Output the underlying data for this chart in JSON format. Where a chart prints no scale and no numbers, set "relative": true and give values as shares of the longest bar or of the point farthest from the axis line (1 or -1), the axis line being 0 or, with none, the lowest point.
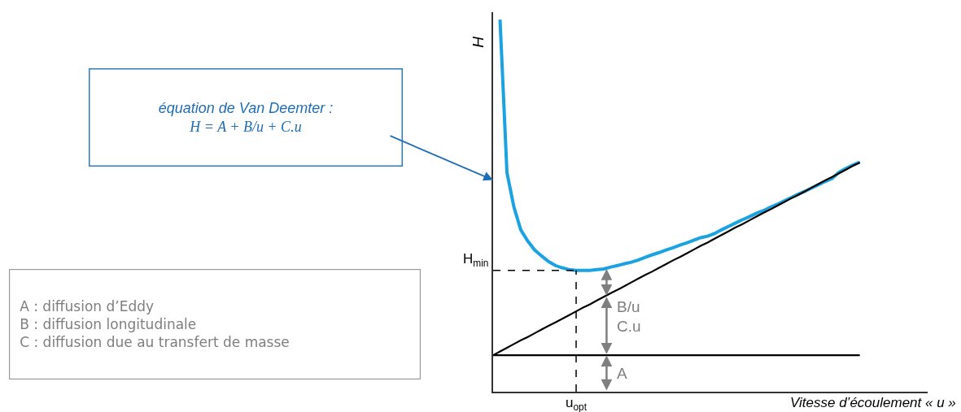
{
  "chart_data": {
    "type": "line",
    "relative": true,
    "xlabel": "Vitesse d’écoulement « u »",
    "ylabel": "H",
    "categories": [
      null,
      null,
      null,
      null,
      null,
      null,
      null,
      null,
      null,
      null,
      null,
      null,
      null,
      null,
      null,
      null,
      null,
      null,
      null,
      null,
      null,
      null,
      null,
      null,
      null,
      null,
      null,
      null,
      null,
      null,
      null,
      null,
      null,
      null,
      null,
      null,
      null,
      null,
      null,
      null,
      null,
      null,
      null,
      null,
      null,
      null,
      null,
      null,
      null,
      null,
      null,
      null,
      null,
      null
    ],
    "series": [
      {
        "color": "#1aa3e0",
        "values": [
          null,
          1.0,
          0.589,
          0.497,
          0.435,
          0.405,
          0.381,
          0.365,
          0.35,
          0.339,
          0.333,
          0.328,
          0.326,
          0.326,
          0.326,
          0.328,
          0.33,
          0.335,
          0.339,
          0.344,
          0.348,
          0.354,
          0.361,
          0.368,
          0.374,
          0.381,
          0.387,
          0.394,
          0.4,
          0.407,
          0.414,
          0.418,
          0.425,
          0.435,
          0.444,
          0.453,
          0.462,
          0.47,
          0.479,
          0.486,
          0.495,
          0.503,
          0.512,
          0.521,
          0.53,
          0.538,
          0.547,
          0.556,
          0.565,
          0.573,
          0.59,
          0.6,
          0.609,
          0.617
        ]
      },
      {
        "color": "#000000",
        "values": [
          0.098,
          0.108,
          0.118,
          0.128,
          0.138,
          0.147,
          0.157,
          0.167,
          0.177,
          0.186,
          0.196,
          0.206,
          0.216,
          0.226,
          0.235,
          0.245,
          0.255,
          0.265,
          0.274,
          0.284,
          0.294,
          0.304,
          0.314,
          0.323,
          0.333,
          0.343,
          0.353,
          0.362,
          0.372,
          0.382,
          0.392,
          0.401,
          0.411,
          0.421,
          0.431,
          0.441,
          0.45,
          0.46,
          0.47,
          0.48,
          0.489,
          0.499,
          0.509,
          0.519,
          0.528,
          0.538,
          0.548,
          0.558,
          0.568,
          0.577,
          0.587,
          0.597,
          0.607,
          0.616
        ]
      },
      {
        "color": "#000000",
        "values": [
          0.098,
          0.098,
          0.098,
          0.098,
          0.098,
          0.098,
          0.098,
          0.098,
          0.098,
          0.098,
          0.098,
          0.098,
          0.098,
          0.098,
          0.098,
          0.098,
          0.098,
          0.098,
          0.098,
          0.098,
          0.098,
          0.098,
          0.098,
          0.098,
          0.098,
          0.098,
          0.098,
          0.098,
          0.098,
          0.098,
          0.098,
          0.098,
          0.098,
          0.098,
          0.098,
          0.098,
          0.098,
          0.098,
          0.098,
          0.098,
          0.098,
          0.098,
          0.098,
          0.098,
          0.098,
          0.098,
          0.098,
          0.098,
          0.098,
          0.098,
          0.098,
          0.098,
          0.098,
          0.098
        ]
      }
    ],
    "ref_lines": [
      {
        "axis": "y",
        "value": 0.326,
        "label": "H$_{min}$",
        "line_style": "dashed",
        "color": "#000000"
      }
    ],
    "annotations": [
      "équation de Van Deemter :",
      "H = A + B/u + C.u",
      "A : diffusion d’Eddy",
      "B : diffusion longitudinale",
      "C : diffusion due au transfert de masse",
      "u$_{opt}$",
      "B/u",
      "C.u",
      "A"
    ]
  }
}
